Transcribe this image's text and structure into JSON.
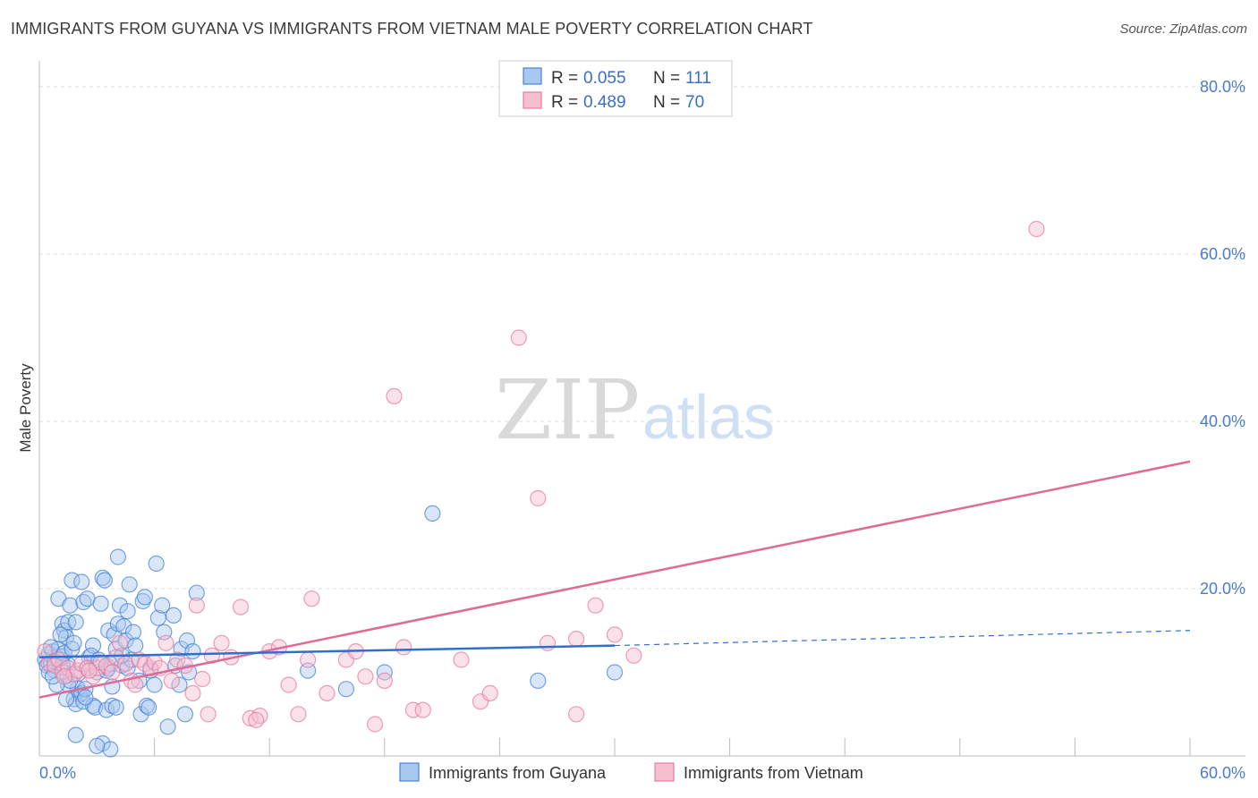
{
  "header": {
    "title": "IMMIGRANTS FROM GUYANA VS IMMIGRANTS FROM VIETNAM MALE POVERTY CORRELATION CHART",
    "source": "Source: ZipAtlas.com"
  },
  "watermark": {
    "zip": "ZIP",
    "atlas": "atlas"
  },
  "colors": {
    "guyana_fill": "#a9c8ef",
    "guyana_stroke": "#4a84d6",
    "guyana_line": "#2f6fd0",
    "vietnam_fill": "#f6bfd0",
    "vietnam_stroke": "#e57ca0",
    "vietnam_line": "#e06a96",
    "grid": "#dddddd",
    "tick_label": "#4a7cc9"
  },
  "legend": {
    "rows": [
      {
        "r_label": "R =",
        "r_value": "0.055",
        "n_label": "N =",
        "n_value": "111"
      },
      {
        "r_label": "R =",
        "r_value": "0.489",
        "n_label": "N =",
        "n_value": "70"
      }
    ]
  },
  "chart_data": {
    "type": "scatter",
    "title": "IMMIGRANTS FROM GUYANA VS IMMIGRANTS FROM VIETNAM MALE POVERTY CORRELATION CHART",
    "xlabel": "",
    "ylabel": "Male Poverty",
    "xlim": [
      0,
      60
    ],
    "ylim": [
      0,
      80
    ],
    "x_tick_labels": [
      "0.0%",
      "60.0%"
    ],
    "y_ticks": [
      20,
      40,
      60,
      80
    ],
    "y_tick_labels": [
      "20.0%",
      "40.0%",
      "60.0%",
      "80.0%"
    ],
    "series": [
      {
        "name": "Immigrants from Guyana",
        "R": 0.055,
        "N": 111,
        "trend": {
          "x0": 0,
          "y0": 11.8,
          "x1": 30,
          "y1": 13.2,
          "dashed_to_x": 60,
          "dashed_to_y": 15.0
        },
        "points": [
          [
            0.3,
            11.5
          ],
          [
            0.4,
            10.8
          ],
          [
            0.5,
            12.2
          ],
          [
            0.6,
            11.0
          ],
          [
            0.7,
            12.5
          ],
          [
            0.8,
            10.2
          ],
          [
            0.9,
            11.8
          ],
          [
            1.0,
            12.8
          ],
          [
            0.5,
            10.0
          ],
          [
            0.6,
            13.0
          ],
          [
            0.8,
            11.3
          ],
          [
            1.1,
            10.6
          ],
          [
            1.2,
            11.9
          ],
          [
            1.3,
            12.3
          ],
          [
            1.4,
            9.6
          ],
          [
            1.5,
            10.9
          ],
          [
            1.0,
            18.8
          ],
          [
            1.2,
            15.8
          ],
          [
            1.3,
            15.0
          ],
          [
            1.4,
            14.2
          ],
          [
            1.5,
            16.0
          ],
          [
            1.6,
            18.0
          ],
          [
            1.7,
            12.8
          ],
          [
            1.8,
            13.5
          ],
          [
            1.9,
            16.0
          ],
          [
            1.7,
            21.0
          ],
          [
            2.0,
            9.8
          ],
          [
            2.1,
            7.3
          ],
          [
            2.0,
            8.1
          ],
          [
            1.8,
            6.8
          ],
          [
            1.9,
            6.2
          ],
          [
            2.2,
            7.5
          ],
          [
            2.3,
            6.5
          ],
          [
            2.4,
            8.0
          ],
          [
            2.5,
            10.5
          ],
          [
            2.6,
            11.8
          ],
          [
            2.2,
            20.8
          ],
          [
            2.3,
            18.4
          ],
          [
            2.5,
            18.8
          ],
          [
            2.8,
            13.2
          ],
          [
            2.8,
            6.0
          ],
          [
            2.9,
            5.8
          ],
          [
            3.0,
            10.0
          ],
          [
            3.2,
            18.2
          ],
          [
            3.3,
            21.3
          ],
          [
            3.4,
            21.0
          ],
          [
            3.5,
            10.2
          ],
          [
            3.5,
            5.5
          ],
          [
            3.6,
            15.0
          ],
          [
            3.6,
            10.5
          ],
          [
            3.7,
            11.0
          ],
          [
            3.8,
            6.0
          ],
          [
            3.8,
            8.3
          ],
          [
            3.9,
            14.5
          ],
          [
            4.0,
            5.8
          ],
          [
            4.1,
            15.8
          ],
          [
            4.2,
            18.0
          ],
          [
            4.0,
            12.8
          ],
          [
            4.3,
            10.8
          ],
          [
            4.1,
            23.8
          ],
          [
            4.4,
            15.5
          ],
          [
            4.5,
            13.8
          ],
          [
            4.6,
            17.3
          ],
          [
            4.6,
            10.5
          ],
          [
            4.8,
            11.5
          ],
          [
            4.7,
            20.5
          ],
          [
            4.9,
            14.8
          ],
          [
            5.0,
            13.2
          ],
          [
            5.2,
            9.0
          ],
          [
            5.3,
            5.0
          ],
          [
            5.4,
            18.5
          ],
          [
            5.5,
            19.0
          ],
          [
            5.6,
            6.0
          ],
          [
            5.7,
            5.8
          ],
          [
            5.8,
            10.2
          ],
          [
            6.0,
            8.5
          ],
          [
            6.1,
            23.0
          ],
          [
            6.2,
            16.5
          ],
          [
            6.4,
            18.0
          ],
          [
            6.5,
            14.8
          ],
          [
            6.7,
            3.5
          ],
          [
            7.0,
            16.8
          ],
          [
            7.1,
            10.8
          ],
          [
            7.3,
            8.5
          ],
          [
            7.4,
            12.8
          ],
          [
            7.6,
            5.0
          ],
          [
            7.8,
            10.0
          ],
          [
            7.7,
            13.8
          ],
          [
            8.0,
            12.5
          ],
          [
            8.2,
            19.5
          ],
          [
            1.5,
            8.5
          ],
          [
            1.6,
            9.0
          ],
          [
            1.2,
            11.0
          ],
          [
            2.7,
            12.0
          ],
          [
            3.1,
            11.5
          ],
          [
            1.9,
            2.5
          ],
          [
            3.3,
            1.5
          ],
          [
            3.7,
            0.8
          ],
          [
            3.0,
            1.2
          ],
          [
            0.9,
            8.5
          ],
          [
            1.4,
            6.8
          ],
          [
            14.0,
            10.2
          ],
          [
            16.0,
            8.0
          ],
          [
            18.0,
            10.0
          ],
          [
            20.5,
            29.0
          ],
          [
            26.0,
            9.0
          ],
          [
            30.0,
            10.0
          ],
          [
            2.4,
            7.0
          ],
          [
            1.1,
            14.5
          ],
          [
            0.7,
            9.5
          ],
          [
            4.3,
            12.0
          ]
        ]
      },
      {
        "name": "Immigrants from Vietnam",
        "R": 0.489,
        "N": 70,
        "trend": {
          "x0": 0,
          "y0": 7.0,
          "x1": 60,
          "y1": 35.2
        },
        "points": [
          [
            0.3,
            12.5
          ],
          [
            0.5,
            11.0
          ],
          [
            0.8,
            10.8
          ],
          [
            1.0,
            11.5
          ],
          [
            1.2,
            10.0
          ],
          [
            1.5,
            10.5
          ],
          [
            1.8,
            9.8
          ],
          [
            2.0,
            10.2
          ],
          [
            2.2,
            11.0
          ],
          [
            2.5,
            10.5
          ],
          [
            2.8,
            9.5
          ],
          [
            3.0,
            10.5
          ],
          [
            3.2,
            11.2
          ],
          [
            3.5,
            10.8
          ],
          [
            3.8,
            10.0
          ],
          [
            4.0,
            11.8
          ],
          [
            4.2,
            13.5
          ],
          [
            4.5,
            11.0
          ],
          [
            4.8,
            9.0
          ],
          [
            5.0,
            8.5
          ],
          [
            5.2,
            11.5
          ],
          [
            5.5,
            11.0
          ],
          [
            5.8,
            10.5
          ],
          [
            6.0,
            11.2
          ],
          [
            6.3,
            10.5
          ],
          [
            6.6,
            13.5
          ],
          [
            6.9,
            9.0
          ],
          [
            7.2,
            11.5
          ],
          [
            7.6,
            10.8
          ],
          [
            8.0,
            7.5
          ],
          [
            8.2,
            18.0
          ],
          [
            8.5,
            9.2
          ],
          [
            8.8,
            5.0
          ],
          [
            9.0,
            12.0
          ],
          [
            9.5,
            13.5
          ],
          [
            10.0,
            11.8
          ],
          [
            10.5,
            17.8
          ],
          [
            11.0,
            4.5
          ],
          [
            11.5,
            4.8
          ],
          [
            12.0,
            12.5
          ],
          [
            12.5,
            13.0
          ],
          [
            13.0,
            8.5
          ],
          [
            13.5,
            5.0
          ],
          [
            14.0,
            11.5
          ],
          [
            14.2,
            18.8
          ],
          [
            15.0,
            7.5
          ],
          [
            16.0,
            11.5
          ],
          [
            16.5,
            12.5
          ],
          [
            17.0,
            9.5
          ],
          [
            17.5,
            3.8
          ],
          [
            18.0,
            9.0
          ],
          [
            18.5,
            43.0
          ],
          [
            19.0,
            13.0
          ],
          [
            19.5,
            5.5
          ],
          [
            20.0,
            5.5
          ],
          [
            22.0,
            11.5
          ],
          [
            23.0,
            6.5
          ],
          [
            23.5,
            7.5
          ],
          [
            25.0,
            50.0
          ],
          [
            26.0,
            30.8
          ],
          [
            26.5,
            13.5
          ],
          [
            28.0,
            5.0
          ],
          [
            28.0,
            14.0
          ],
          [
            29.0,
            18.0
          ],
          [
            30.0,
            14.5
          ],
          [
            31.0,
            12.0
          ],
          [
            52.0,
            63.0
          ],
          [
            1.3,
            9.5
          ],
          [
            2.6,
            10.2
          ],
          [
            11.3,
            4.3
          ]
        ]
      }
    ]
  },
  "bottom_legend": {
    "items": [
      {
        "label": "Immigrants from Guyana"
      },
      {
        "label": "Immigrants from Vietnam"
      }
    ]
  }
}
